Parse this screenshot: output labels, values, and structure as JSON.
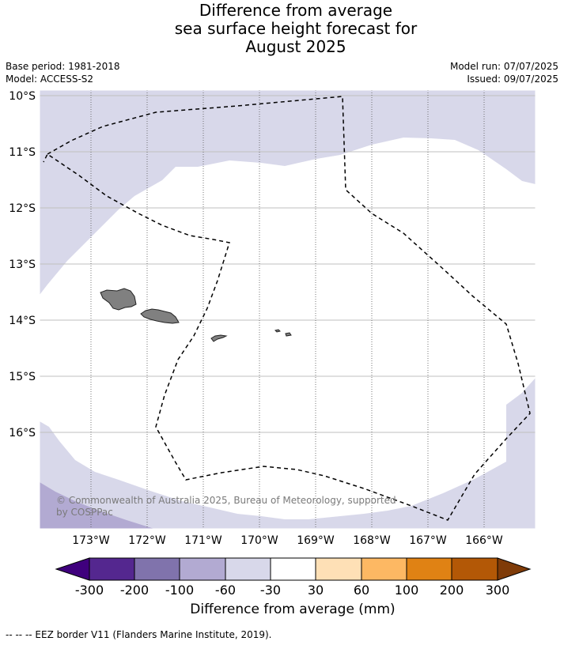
{
  "title": {
    "line1": "Difference from average",
    "line2": "sea surface height forecast for",
    "line3": "August 2025"
  },
  "meta": {
    "base_period": "Base period: 1981-2018",
    "model": "Model: ACCESS-S2",
    "model_run": "Model run: 07/07/2025",
    "issued": "Issued: 09/07/2025"
  },
  "map": {
    "lat_labels": [
      "10°S",
      "11°S",
      "12°S",
      "13°S",
      "14°S",
      "15°S",
      "16°S"
    ],
    "lon_labels": [
      "173°W",
      "172°W",
      "171°W",
      "170°W",
      "169°W",
      "168°W",
      "167°W",
      "166°W"
    ],
    "copyright_line1": "© Commonwealth of Australia 2025, Bureau of Meteorology, supported",
    "copyright_line2": "by COSPPac",
    "colors": {
      "ocean_white": "#ffffff",
      "band_neg30_60": "#d8d8ea",
      "band_neg60_100": "#b2aad2",
      "land": "#808080",
      "eez_line": "#000000"
    }
  },
  "colorbar": {
    "ticks": [
      "-300",
      "-200",
      "-100",
      "-60",
      "-30",
      "30",
      "60",
      "100",
      "200",
      "300"
    ],
    "colors": [
      "#3f007d",
      "#54278f",
      "#8073ac",
      "#b2aad2",
      "#d8d8ea",
      "#ffffff",
      "#fee0b6",
      "#fdb863",
      "#e08214",
      "#b35806",
      "#7f3b08"
    ],
    "label": "Difference from average (mm)"
  },
  "footer": "--  --  -- EEZ border V11 (Flanders Marine Institute, 2019)."
}
